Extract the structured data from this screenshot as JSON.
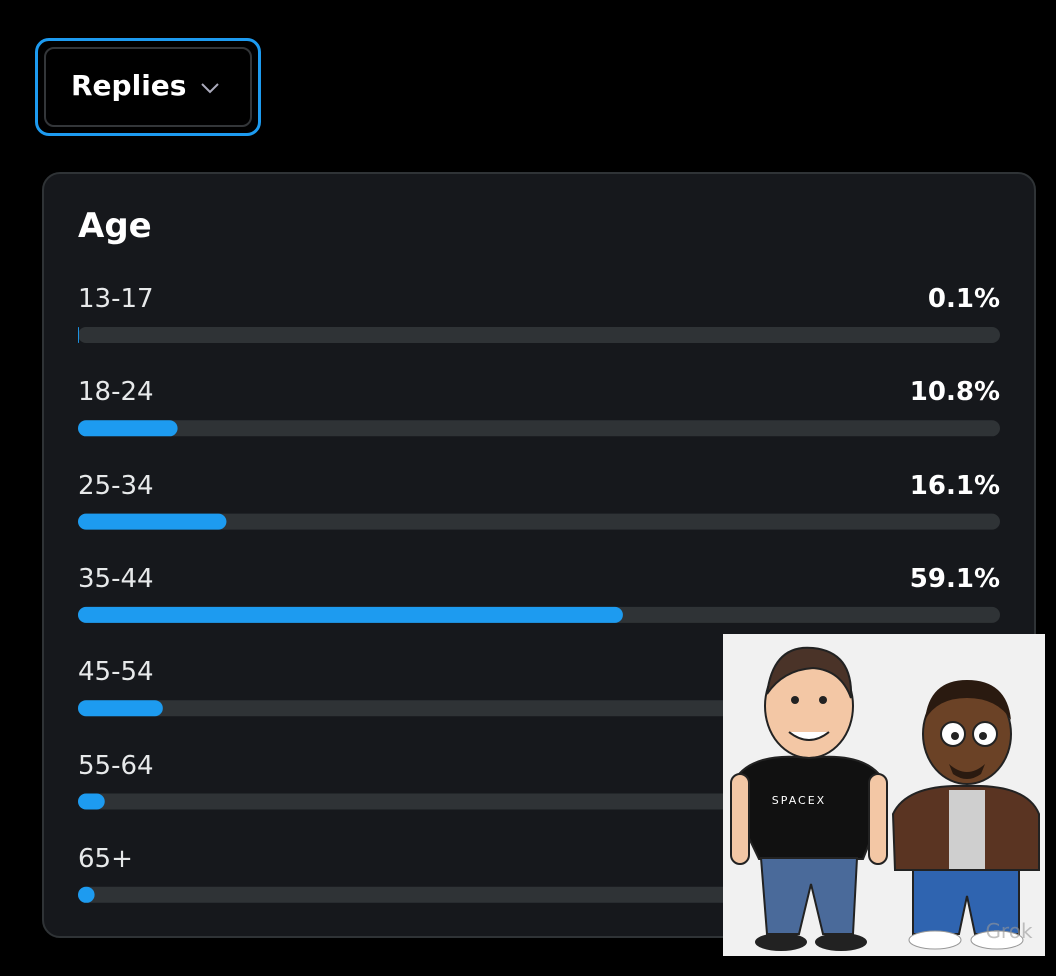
{
  "dropdown": {
    "label": "Replies"
  },
  "age": {
    "title": "Age",
    "rows": [
      {
        "label": "13-17",
        "value": 0.1,
        "value_label": "0.1%"
      },
      {
        "label": "18-24",
        "value": 10.8,
        "value_label": "10.8%"
      },
      {
        "label": "25-34",
        "value": 16.1,
        "value_label": "16.1%"
      },
      {
        "label": "35-44",
        "value": 59.1,
        "value_label": "59.1%"
      },
      {
        "label": "45-54",
        "value": 9.2
      },
      {
        "label": "55-64",
        "value": 2.9
      },
      {
        "label": "65+",
        "value": 1.8
      }
    ]
  },
  "overlay": {
    "shirt_text": "SPACEX",
    "watermark": "Grok"
  }
}
